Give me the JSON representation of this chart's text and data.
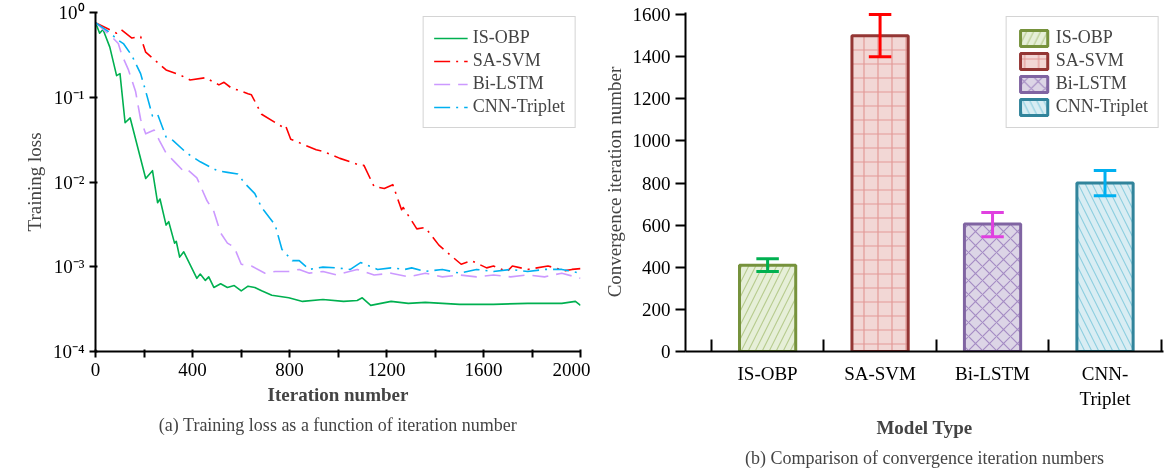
{
  "chart_data": [
    {
      "type": "line",
      "xlabel": "Iteration number",
      "ylabel": "Training loss",
      "log": "y",
      "legend": "top right",
      "grid": false,
      "marker": "none",
      "annotations": [
        "(a) Training loss as a function of iteration number"
      ],
      "xlim": [
        0,
        2000
      ],
      "ylim": [
        0.0001,
        1
      ],
      "xticks": [
        0,
        {
          "value": 200,
          "label": null
        },
        400,
        {
          "value": 600,
          "label": null
        },
        800,
        {
          "value": 1000,
          "label": null
        },
        1200,
        {
          "value": 1400,
          "label": null
        },
        1600,
        {
          "value": 1800,
          "label": null
        },
        2000
      ],
      "yticks": [
        {
          "value": 0.0001,
          "label": "10⁻⁴"
        },
        {
          "value": 0.001,
          "label": "10⁻³"
        },
        {
          "value": 0.01,
          "label": "10⁻²"
        },
        {
          "value": 0.1,
          "label": "10⁻¹"
        },
        {
          "value": 1,
          "label": "10⁰"
        }
      ],
      "series": [
        {
          "name": "IS-OBP",
          "color": "#00b050",
          "line_style": "solid",
          "x": [
            0,
            17,
            31,
            59,
            87,
            101,
            122,
            143,
            207,
            235,
            256,
            266,
            291,
            302,
            326,
            333,
            347,
            364,
            418,
            432,
            453,
            467,
            488,
            516,
            544,
            572,
            601,
            629,
            657,
            685,
            727,
            797,
            854,
            938,
            1023,
            1079,
            1100,
            1135,
            1219,
            1290,
            1360,
            1501,
            1641,
            1782,
            1923,
            1979,
            2000
          ],
          "values": [
            0.76,
            0.57,
            0.63,
            0.39,
            0.18,
            0.19,
            0.05,
            0.057,
            0.011,
            0.0136,
            0.0057,
            0.0063,
            0.0031,
            0.0034,
            0.0019,
            0.002,
            0.0013,
            0.0015,
            0.00073,
            0.00082,
            0.00069,
            0.00076,
            0.00057,
            0.00063,
            0.00057,
            0.0006,
            0.00052,
            0.00059,
            0.00057,
            0.00052,
            0.00046,
            0.00043,
            0.00039,
            0.00041,
            0.00039,
            0.0004,
            0.00043,
            0.00035,
            0.00039,
            0.00037,
            0.00038,
            0.00036,
            0.00036,
            0.00037,
            0.00037,
            0.00039,
            0.00035
          ]
        },
        {
          "name": "SA-SVM",
          "color": "#ff0000",
          "line_style": "dashdot",
          "x": [
            0,
            87,
            105,
            150,
            186,
            207,
            291,
            354,
            390,
            453,
            509,
            530,
            558,
            629,
            643,
            685,
            769,
            783,
            805,
            910,
            938,
            1008,
            1093,
            1107,
            1149,
            1191,
            1226,
            1262,
            1269,
            1325,
            1360,
            1416,
            1473,
            1508,
            1550,
            1613,
            1641,
            1698,
            1719,
            1782,
            1866,
            1937,
            1965,
            2000
          ],
          "values": [
            0.76,
            0.57,
            0.63,
            0.5,
            0.52,
            0.34,
            0.21,
            0.18,
            0.16,
            0.17,
            0.14,
            0.15,
            0.13,
            0.11,
            0.107,
            0.063,
            0.045,
            0.047,
            0.032,
            0.024,
            0.023,
            0.019,
            0.0157,
            0.0157,
            0.0088,
            0.0084,
            0.0093,
            0.0047,
            0.005,
            0.0028,
            0.0029,
            0.0018,
            0.0013,
            0.00107,
            0.00118,
            0.00097,
            0.00102,
            0.00088,
            0.00102,
            0.00093,
            0.00102,
            0.0009,
            0.00093,
            0.00095
          ]
        },
        {
          "name": "Bi-LSTM",
          "color": "#cc99ff",
          "line_style": "dashed",
          "x": [
            0,
            66,
            94,
            108,
            136,
            165,
            186,
            207,
            242,
            263,
            291,
            326,
            361,
            376,
            418,
            460,
            488,
            516,
            544,
            572,
            601,
            643,
            699,
            741,
            797,
            840,
            882,
            938,
            994,
            1079,
            1149,
            1219,
            1290,
            1360,
            1430,
            1501,
            1571,
            1641,
            1712,
            1782,
            1852,
            1923,
            2000
          ],
          "values": [
            0.76,
            0.52,
            0.43,
            0.32,
            0.21,
            0.118,
            0.055,
            0.037,
            0.041,
            0.031,
            0.022,
            0.0173,
            0.0136,
            0.0143,
            0.0112,
            0.006,
            0.0045,
            0.0025,
            0.0019,
            0.0017,
            0.00107,
            0.00102,
            0.00084,
            0.00088,
            0.00088,
            0.00093,
            0.00084,
            0.00088,
            0.0008,
            0.00093,
            0.0008,
            0.00084,
            0.00076,
            0.00084,
            0.00076,
            0.0008,
            0.00076,
            0.0008,
            0.00076,
            0.0008,
            0.00076,
            0.00084,
            0.00073
          ]
        },
        {
          "name": "CNN-Triplet",
          "color": "#00b0f0",
          "line_style": "dashdot",
          "x": [
            0,
            52,
            94,
            115,
            150,
            186,
            207,
            235,
            256,
            291,
            319,
            376,
            432,
            488,
            502,
            544,
            587,
            615,
            657,
            685,
            741,
            769,
            812,
            840,
            882,
            938,
            994,
            1051,
            1093,
            1163,
            1219,
            1276,
            1304,
            1360,
            1430,
            1501,
            1571,
            1641,
            1712,
            1782,
            1852,
            1923,
            2000
          ],
          "values": [
            0.76,
            0.6,
            0.47,
            0.43,
            0.31,
            0.19,
            0.118,
            0.06,
            0.063,
            0.034,
            0.031,
            0.022,
            0.0173,
            0.0143,
            0.0136,
            0.013,
            0.0124,
            0.0097,
            0.0073,
            0.005,
            0.0031,
            0.0016,
            0.00118,
            0.00118,
            0.00093,
            0.00099,
            0.00097,
            0.00093,
            0.00112,
            0.00093,
            0.00097,
            0.00093,
            0.00097,
            0.00088,
            0.00093,
            0.00084,
            0.00093,
            0.00088,
            0.00093,
            0.00088,
            0.00093,
            0.00093,
            0.00084
          ]
        }
      ]
    },
    {
      "type": "bar",
      "xlabel": "Model Type",
      "ylabel": "Convergence iteration number",
      "legend": "top right",
      "grid": false,
      "annotations": [
        "(b) Comparison of convergence iteration numbers"
      ],
      "categories": [
        "IS-OBP",
        "SA-SVM",
        "Bi-LSTM",
        "CNN-Triplet"
      ],
      "series": [
        {
          "name": "IS-OBP",
          "color": "#e6efd8",
          "values": [
            410,
            null,
            null,
            null
          ],
          "errors": [
            30,
            null,
            null,
            null
          ]
        },
        {
          "name": "SA-SVM",
          "color": "#f2d7d5",
          "values": [
            null,
            1500,
            null,
            null
          ],
          "errors": [
            null,
            100,
            null,
            null
          ]
        },
        {
          "name": "Bi-LSTM",
          "color": "#dcd5e6",
          "values": [
            null,
            null,
            605,
            null
          ],
          "errors": [
            null,
            null,
            [
              545,
              660
            ],
            null
          ]
        },
        {
          "name": "CNN-Triplet",
          "color": "#d9edf3",
          "values": [
            null,
            null,
            null,
            800
          ],
          "errors": [
            null,
            null,
            null,
            60
          ]
        }
      ],
      "ylim": [
        0,
        1610
      ],
      "yticks": [
        0,
        200,
        400,
        600,
        800,
        1000,
        1200,
        1400,
        1600
      ]
    }
  ]
}
